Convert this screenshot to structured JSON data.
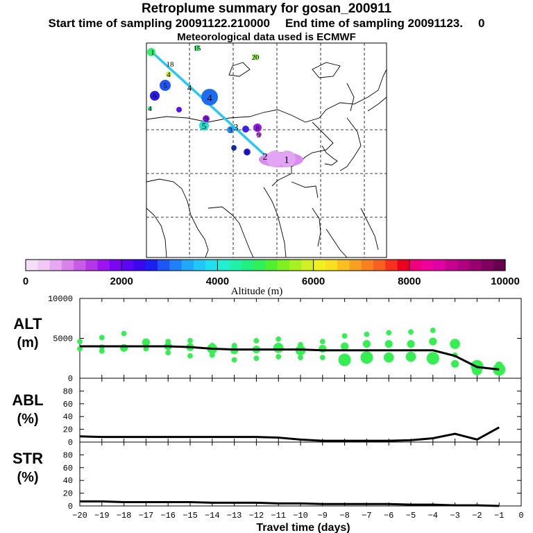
{
  "header": {
    "title": "Retroplume summary for gosan_200911",
    "start_label": "Start time of sampling 20091122.210000",
    "end_label": "End time of sampling 20091123.",
    "end_suffix": "0",
    "met_label": "Meteorological data used is ECMWF"
  },
  "colorbar": {
    "label": "Altitude (m)",
    "min": 0,
    "max": 10000,
    "tick_values": [
      0,
      2000,
      4000,
      6000,
      8000,
      10000
    ],
    "tick_labels": [
      "0",
      "2000",
      "4000",
      "6000",
      "8000",
      "10000"
    ],
    "colors": [
      "#f5dff7",
      "#f0c8f5",
      "#e6a8f0",
      "#d883ea",
      "#c85ce6",
      "#b535e8",
      "#9c14f0",
      "#7a06f5",
      "#5a06f5",
      "#3a08f0",
      "#1a20f0",
      "#1e55f5",
      "#2080f8",
      "#20a8fa",
      "#20c8f8",
      "#20e0f0",
      "#20f0d0",
      "#20f0a8",
      "#20f080",
      "#30f058",
      "#50f030",
      "#80f020",
      "#a8f020",
      "#d0f020",
      "#f0f020",
      "#f8e020",
      "#f8c020",
      "#f8a020",
      "#f88020",
      "#f86020",
      "#f83020",
      "#f00020",
      "#f0007a",
      "#f0009c",
      "#e000a8",
      "#c80090",
      "#b00080",
      "#980070",
      "#800060",
      "#680050"
    ]
  },
  "map": {
    "point_labels": [
      {
        "text": "1",
        "lon_lat_note": "start"
      },
      {
        "text": "15"
      },
      {
        "text": "20"
      },
      {
        "text": "18"
      },
      {
        "text": "4"
      },
      {
        "text": "5"
      },
      {
        "text": "4"
      },
      {
        "text": "6"
      },
      {
        "text": "4"
      },
      {
        "text": "4"
      },
      {
        "text": "9"
      },
      {
        "text": "5"
      },
      {
        "text": "3"
      },
      {
        "text": "3"
      },
      {
        "text": "8"
      },
      {
        "text": "9"
      },
      {
        "text": "8"
      },
      {
        "text": "8"
      },
      {
        "text": "2"
      },
      {
        "text": "1"
      }
    ]
  },
  "chart_data": [
    {
      "type": "scatter",
      "panel": "ALT",
      "ylabel": "ALT (m)",
      "ylim": [
        0,
        10000
      ],
      "ytick_labels": [
        "10000",
        "5000",
        "0"
      ],
      "yticks": [
        10000,
        5000,
        0
      ],
      "xlim": [
        -20,
        0
      ],
      "series": [
        {
          "name": "mean altitude",
          "x": [
            -20,
            -19,
            -18,
            -17,
            -16,
            -15,
            -14,
            -13,
            -12,
            -11,
            -10,
            -9,
            -8,
            -7,
            -6,
            -5,
            -4,
            -3,
            -2,
            -1
          ],
          "y": [
            4000,
            4000,
            4000,
            4000,
            4000,
            3900,
            3700,
            3600,
            3600,
            3600,
            3600,
            3500,
            3500,
            3500,
            3500,
            3500,
            3500,
            2800,
            1400,
            1100
          ]
        },
        {
          "name": "plume particles",
          "x": [
            -20,
            -20,
            -19,
            -19,
            -19,
            -18,
            -18,
            -17,
            -17,
            -16,
            -16,
            -16,
            -15,
            -15,
            -15,
            -14,
            -14,
            -14,
            -13,
            -13,
            -13,
            -12,
            -12,
            -12,
            -11,
            -11,
            -11,
            -10,
            -10,
            -10,
            -9,
            -9,
            -9,
            -8,
            -8,
            -8,
            -7,
            -7,
            -7,
            -6,
            -6,
            -6,
            -5,
            -5,
            -5,
            -4,
            -4,
            -4,
            -3,
            -3,
            -3,
            -2,
            -2,
            -1,
            -1
          ],
          "y": [
            4600,
            3700,
            5100,
            3900,
            3400,
            5600,
            3800,
            4500,
            3700,
            4600,
            4000,
            3200,
            4700,
            3900,
            2800,
            4100,
            3700,
            2900,
            4100,
            3500,
            2300,
            4700,
            3600,
            2500,
            4900,
            3800,
            2700,
            4200,
            3500,
            2600,
            4600,
            3700,
            2600,
            5300,
            4000,
            2300,
            5500,
            4300,
            2600,
            5700,
            4300,
            2600,
            5800,
            4300,
            2700,
            6000,
            4600,
            2500,
            4300,
            2900,
            1800,
            1500,
            1000,
            1600,
            1100
          ],
          "sizes": [
            1,
            1,
            1,
            1,
            1,
            1,
            2,
            2,
            1,
            1,
            2,
            1,
            1,
            2,
            1,
            1,
            3,
            1,
            1,
            2,
            1,
            1,
            2,
            1,
            1,
            3,
            1,
            1,
            3,
            1,
            1,
            2,
            1,
            1,
            2,
            4,
            1,
            2,
            4,
            1,
            2,
            3,
            1,
            2,
            3,
            1,
            2,
            4,
            3,
            1,
            2,
            4,
            3,
            2,
            4
          ]
        }
      ]
    },
    {
      "type": "line",
      "panel": "ABL",
      "ylabel": "ABL (%)",
      "ylim": [
        0,
        100
      ],
      "ytick_labels": [
        "80",
        "60",
        "40",
        "20",
        "0"
      ],
      "yticks": [
        80,
        60,
        40,
        20,
        0
      ],
      "xlim": [
        -20,
        0
      ],
      "series": [
        {
          "name": "ABL fraction",
          "x": [
            -20,
            -19,
            -18,
            -17,
            -16,
            -15,
            -14,
            -13,
            -12,
            -11,
            -10,
            -9,
            -8,
            -7,
            -6,
            -5,
            -4,
            -3,
            -2,
            -1
          ],
          "y": [
            9,
            8,
            8,
            8,
            8,
            8,
            8,
            8,
            8,
            7,
            4,
            2,
            2,
            2,
            2,
            3,
            6,
            13,
            4,
            23
          ]
        }
      ]
    },
    {
      "type": "line",
      "panel": "STR",
      "ylabel": "STR (%)",
      "ylim": [
        0,
        100
      ],
      "ytick_labels": [
        "80",
        "60",
        "40",
        "20",
        "0"
      ],
      "yticks": [
        80,
        60,
        40,
        20,
        0
      ],
      "xlim": [
        -20,
        0
      ],
      "xlabel": "Travel time (days)",
      "xtick_labels": [
        "−20",
        "−19",
        "−18",
        "−17",
        "−16",
        "−15",
        "−14",
        "−13",
        "−12",
        "−11",
        "−10",
        "−9",
        "−8",
        "−7",
        "−6",
        "−5",
        "−4",
        "−3",
        "−2",
        "−1",
        "0"
      ],
      "series": [
        {
          "name": "STR fraction",
          "x": [
            -20,
            -19,
            -18,
            -17,
            -16,
            -15,
            -14,
            -13,
            -12,
            -11,
            -10,
            -9,
            -8,
            -7,
            -6,
            -5,
            -4,
            -3,
            -2,
            -1
          ],
          "y": [
            7,
            7,
            6,
            6,
            6,
            6,
            5,
            5,
            5,
            4,
            4,
            3,
            3,
            3,
            3,
            2,
            2,
            1,
            1,
            0
          ]
        }
      ]
    }
  ]
}
